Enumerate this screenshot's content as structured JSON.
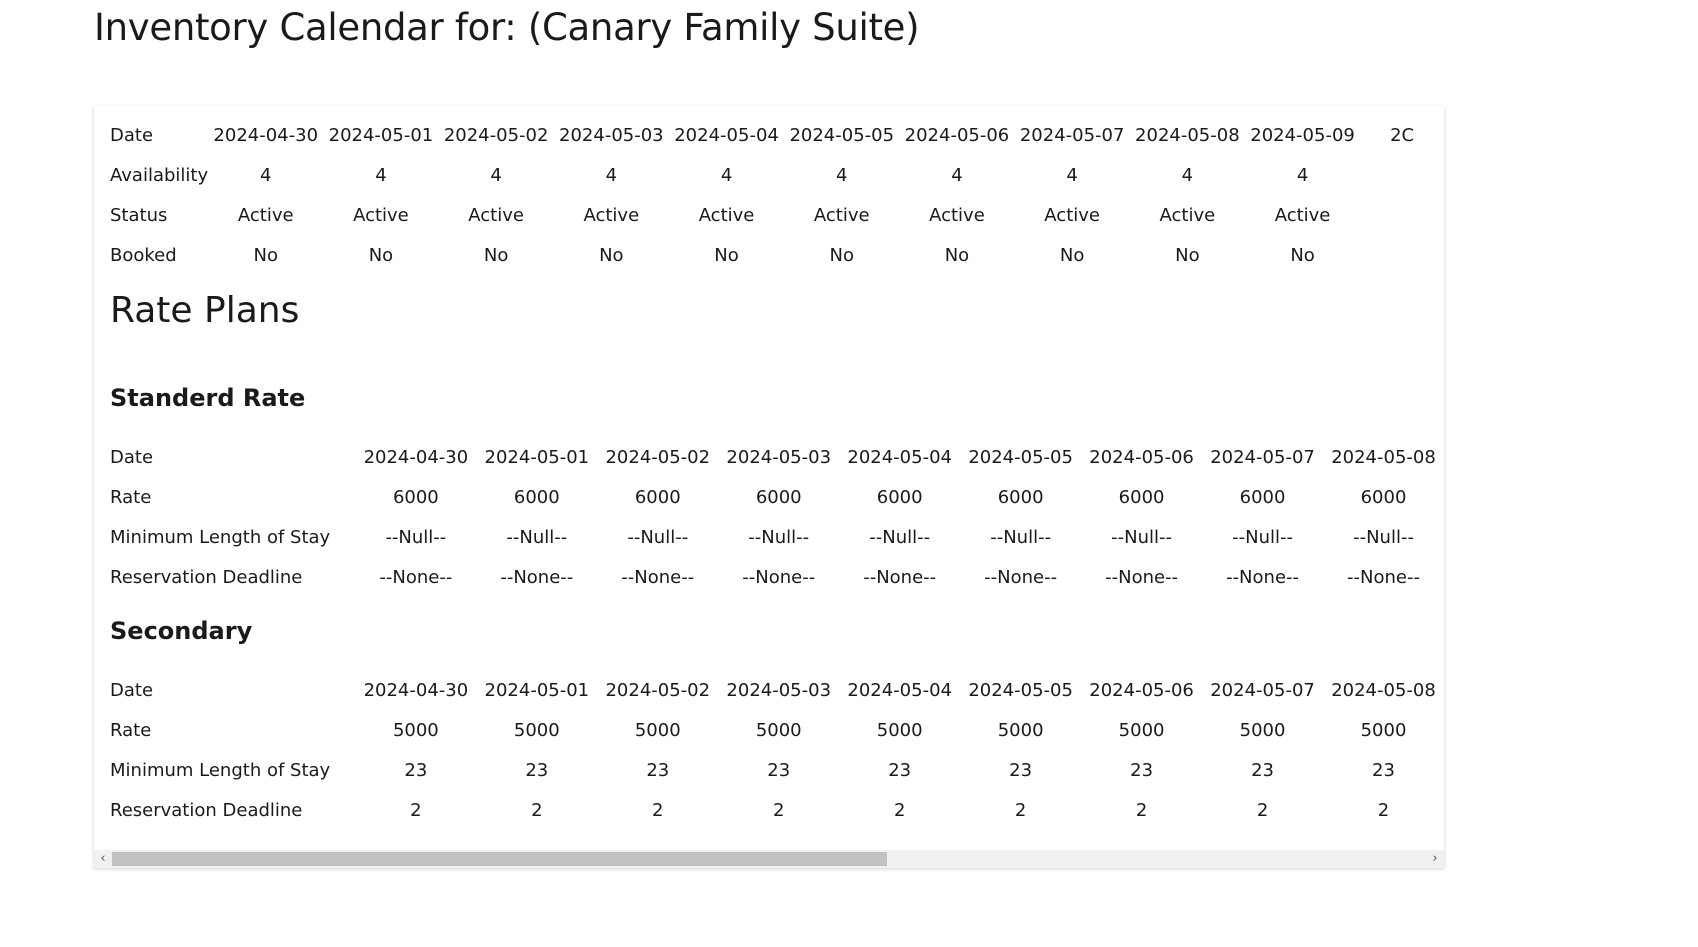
{
  "page": {
    "title": "Inventory Calendar for: (Canary Family Suite)"
  },
  "inventory": {
    "rows": [
      {
        "label": "Date",
        "values": [
          "2024-04-30",
          "2024-05-01",
          "2024-05-02",
          "2024-05-03",
          "2024-05-04",
          "2024-05-05",
          "2024-05-06",
          "2024-05-07",
          "2024-05-08",
          "2024-05-09",
          "2C"
        ]
      },
      {
        "label": "Availability",
        "values": [
          "4",
          "4",
          "4",
          "4",
          "4",
          "4",
          "4",
          "4",
          "4",
          "4",
          ""
        ]
      },
      {
        "label": "Status",
        "values": [
          "Active",
          "Active",
          "Active",
          "Active",
          "Active",
          "Active",
          "Active",
          "Active",
          "Active",
          "Active",
          ""
        ]
      },
      {
        "label": "Booked",
        "values": [
          "No",
          "No",
          "No",
          "No",
          "No",
          "No",
          "No",
          "No",
          "No",
          "No",
          ""
        ]
      }
    ]
  },
  "rate_plans": {
    "title": "Rate Plans",
    "plans": [
      {
        "name": "Standerd Rate",
        "rows": [
          {
            "label": "Date",
            "values": [
              "2024-04-30",
              "2024-05-01",
              "2024-05-02",
              "2024-05-03",
              "2024-05-04",
              "2024-05-05",
              "2024-05-06",
              "2024-05-07",
              "2024-05-08"
            ]
          },
          {
            "label": "Rate",
            "values": [
              "6000",
              "6000",
              "6000",
              "6000",
              "6000",
              "6000",
              "6000",
              "6000",
              "6000"
            ]
          },
          {
            "label": "Minimum Length of Stay",
            "values": [
              "--Null--",
              "--Null--",
              "--Null--",
              "--Null--",
              "--Null--",
              "--Null--",
              "--Null--",
              "--Null--",
              "--Null--"
            ]
          },
          {
            "label": "Reservation Deadline",
            "values": [
              "--None--",
              "--None--",
              "--None--",
              "--None--",
              "--None--",
              "--None--",
              "--None--",
              "--None--",
              "--None--"
            ]
          }
        ]
      },
      {
        "name": "Secondary",
        "rows": [
          {
            "label": "Date",
            "values": [
              "2024-04-30",
              "2024-05-01",
              "2024-05-02",
              "2024-05-03",
              "2024-05-04",
              "2024-05-05",
              "2024-05-06",
              "2024-05-07",
              "2024-05-08"
            ]
          },
          {
            "label": "Rate",
            "values": [
              "5000",
              "5000",
              "5000",
              "5000",
              "5000",
              "5000",
              "5000",
              "5000",
              "5000"
            ]
          },
          {
            "label": "Minimum Length of Stay",
            "values": [
              "23",
              "23",
              "23",
              "23",
              "23",
              "23",
              "23",
              "23",
              "23"
            ]
          },
          {
            "label": "Reservation Deadline",
            "values": [
              "2",
              "2",
              "2",
              "2",
              "2",
              "2",
              "2",
              "2",
              "2"
            ]
          }
        ]
      }
    ]
  },
  "scrollbar": {
    "left_arrow": "‹",
    "right_arrow": "›",
    "thumb_fraction": 0.59
  }
}
